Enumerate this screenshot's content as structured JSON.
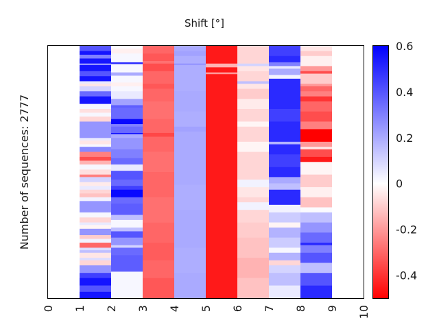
{
  "chart_data": {
    "type": "heatmap",
    "title": "Shift [°]",
    "xlabel": "",
    "ylabel": "Number of sequences: 2777",
    "num_sequences": 2777,
    "x_ticks": [
      "0",
      "1",
      "2",
      "3",
      "4",
      "5",
      "6",
      "7",
      "8",
      "9",
      "10"
    ],
    "xlim": [
      0,
      10
    ],
    "colorbar": {
      "colormap": "bwr",
      "range": [
        -0.5,
        0.6
      ],
      "ticks": [
        0.6,
        0.4,
        0.2,
        0,
        -0.2,
        -0.4
      ],
      "tick_labels": [
        "0.6",
        "0.4",
        "0.2",
        "0",
        "-0.2",
        "-0.4"
      ],
      "colors": {
        "min": "#ff0000",
        "mid": "#ffffff",
        "max": "#0000ff"
      }
    },
    "columns": [
      {
        "x": 1,
        "segments": [
          [
            0.0,
            0.4
          ],
          [
            0.02,
            0.55
          ],
          [
            0.035,
            0.3
          ],
          [
            0.05,
            0.55
          ],
          [
            0.07,
            0.15
          ],
          [
            0.075,
            0.55
          ],
          [
            0.1,
            0.4
          ],
          [
            0.12,
            0.55
          ],
          [
            0.14,
            0.05
          ],
          [
            0.15,
            -0.05
          ],
          [
            0.16,
            0.1
          ],
          [
            0.18,
            0.35
          ],
          [
            0.2,
            0.55
          ],
          [
            0.23,
            0.02
          ],
          [
            0.25,
            -0.06
          ],
          [
            0.265,
            0.02
          ],
          [
            0.28,
            -0.08
          ],
          [
            0.3,
            0.25
          ],
          [
            0.32,
            0.25
          ],
          [
            0.365,
            0.05
          ],
          [
            0.375,
            -0.05
          ],
          [
            0.39,
            0.02
          ],
          [
            0.4,
            0.28
          ],
          [
            0.42,
            -0.25
          ],
          [
            0.44,
            -0.35
          ],
          [
            0.455,
            -0.15
          ],
          [
            0.47,
            0.02
          ],
          [
            0.49,
            -0.06
          ],
          [
            0.51,
            -0.25
          ],
          [
            0.52,
            0.1
          ],
          [
            0.54,
            -0.04
          ],
          [
            0.555,
            0.05
          ],
          [
            0.57,
            -0.08
          ],
          [
            0.585,
            -0.12
          ],
          [
            0.6,
            0.03
          ],
          [
            0.615,
            0.25
          ],
          [
            0.66,
            0.02
          ],
          [
            0.68,
            -0.08
          ],
          [
            0.7,
            0.05
          ],
          [
            0.71,
            -0.02
          ],
          [
            0.725,
            0.25
          ],
          [
            0.75,
            -0.1
          ],
          [
            0.765,
            0.03
          ],
          [
            0.78,
            -0.3
          ],
          [
            0.8,
            0.08
          ],
          [
            0.81,
            0.15
          ],
          [
            0.82,
            -0.05
          ],
          [
            0.84,
            0.08
          ],
          [
            0.85,
            -0.08
          ],
          [
            0.87,
            0.25
          ],
          [
            0.9,
            0.45
          ],
          [
            0.92,
            0.55
          ],
          [
            0.95,
            0.4
          ],
          [
            0.975,
            0.55
          ]
        ]
      },
      {
        "x": 2,
        "segments": [
          [
            0.0,
            0.01
          ],
          [
            0.01,
            -0.03
          ],
          [
            0.03,
            0.02
          ],
          [
            0.065,
            0.5
          ],
          [
            0.072,
            0.02
          ],
          [
            0.105,
            0.2
          ],
          [
            0.118,
            0.02
          ],
          [
            0.145,
            -0.03
          ],
          [
            0.16,
            0.02
          ],
          [
            0.18,
            0.05
          ],
          [
            0.21,
            0.22
          ],
          [
            0.235,
            0.38
          ],
          [
            0.245,
            0.35
          ],
          [
            0.29,
            0.58
          ],
          [
            0.31,
            0.3
          ],
          [
            0.32,
            0.35
          ],
          [
            0.345,
            0.55
          ],
          [
            0.35,
            0.2
          ],
          [
            0.365,
            0.25
          ],
          [
            0.41,
            0.3
          ],
          [
            0.445,
            0.35
          ],
          [
            0.47,
            0.05
          ],
          [
            0.495,
            0.4
          ],
          [
            0.53,
            0.35
          ],
          [
            0.555,
            0.45
          ],
          [
            0.57,
            0.58
          ],
          [
            0.6,
            0.35
          ],
          [
            0.625,
            0.38
          ],
          [
            0.67,
            0.15
          ],
          [
            0.69,
            0.02
          ],
          [
            0.72,
            0.15
          ],
          [
            0.735,
            0.4
          ],
          [
            0.76,
            0.25
          ],
          [
            0.79,
            0.1
          ],
          [
            0.8,
            0.35
          ],
          [
            0.83,
            0.38
          ],
          [
            0.895,
            0.02
          ]
        ]
      },
      {
        "x": 3,
        "segments": [
          [
            0.0,
            -0.3
          ],
          [
            0.03,
            -0.33
          ],
          [
            0.06,
            -0.28
          ],
          [
            0.07,
            -0.35
          ],
          [
            0.1,
            -0.3
          ],
          [
            0.15,
            -0.33
          ],
          [
            0.17,
            -0.3
          ],
          [
            0.22,
            -0.28
          ],
          [
            0.29,
            -0.3
          ],
          [
            0.345,
            -0.36
          ],
          [
            0.36,
            -0.3
          ],
          [
            0.42,
            -0.28
          ],
          [
            0.5,
            -0.3
          ],
          [
            0.6,
            -0.28
          ],
          [
            0.7,
            -0.3
          ],
          [
            0.78,
            -0.32
          ],
          [
            0.85,
            -0.3
          ],
          [
            0.92,
            -0.33
          ]
        ]
      },
      {
        "x": 4,
        "segments": [
          [
            0.0,
            0.2
          ],
          [
            0.02,
            0.22
          ],
          [
            0.04,
            0.19
          ],
          [
            0.07,
            0.27
          ],
          [
            0.075,
            0.19
          ],
          [
            0.18,
            0.2
          ],
          [
            0.26,
            0.19
          ],
          [
            0.32,
            0.22
          ],
          [
            0.34,
            0.2
          ],
          [
            0.55,
            0.19
          ],
          [
            0.65,
            0.2
          ],
          [
            0.8,
            0.19
          ],
          [
            0.9,
            0.2
          ]
        ]
      },
      {
        "x": 5,
        "segments": [
          [
            0.0,
            -0.45
          ],
          [
            0.07,
            -0.15
          ],
          [
            0.085,
            -0.45
          ],
          [
            0.105,
            -0.2
          ],
          [
            0.112,
            -0.45
          ]
        ]
      },
      {
        "x": 6,
        "segments": [
          [
            0.0,
            -0.08
          ],
          [
            0.07,
            0.1
          ],
          [
            0.08,
            -0.05
          ],
          [
            0.1,
            -0.08
          ],
          [
            0.14,
            0.15
          ],
          [
            0.15,
            -0.05
          ],
          [
            0.17,
            -0.1
          ],
          [
            0.21,
            -0.04
          ],
          [
            0.25,
            -0.08
          ],
          [
            0.3,
            -0.02
          ],
          [
            0.32,
            -0.08
          ],
          [
            0.38,
            -0.02
          ],
          [
            0.42,
            -0.08
          ],
          [
            0.53,
            0.03
          ],
          [
            0.56,
            -0.05
          ],
          [
            0.6,
            -0.08
          ],
          [
            0.62,
            0.03
          ],
          [
            0.65,
            -0.08
          ],
          [
            0.7,
            -0.1
          ],
          [
            0.76,
            -0.12
          ],
          [
            0.84,
            -0.15
          ],
          [
            0.92,
            -0.12
          ]
        ]
      },
      {
        "x": 7,
        "segments": [
          [
            0.0,
            0.45
          ],
          [
            0.04,
            0.5
          ],
          [
            0.065,
            0.3
          ],
          [
            0.08,
            0.05
          ],
          [
            0.09,
            0.2
          ],
          [
            0.115,
            0.03
          ],
          [
            0.13,
            0.5
          ],
          [
            0.25,
            0.45
          ],
          [
            0.3,
            0.5
          ],
          [
            0.375,
            0.5
          ],
          [
            0.38,
            0.18
          ],
          [
            0.39,
            0.5
          ],
          [
            0.43,
            0.45
          ],
          [
            0.48,
            0.5
          ],
          [
            0.52,
            0.2
          ],
          [
            0.545,
            0.15
          ],
          [
            0.57,
            0.5
          ],
          [
            0.63,
            0.03
          ],
          [
            0.66,
            0.12
          ],
          [
            0.7,
            -0.02
          ],
          [
            0.72,
            0.18
          ],
          [
            0.76,
            0.12
          ],
          [
            0.8,
            0.02
          ],
          [
            0.82,
            0.18
          ],
          [
            0.85,
            -0.08
          ],
          [
            0.87,
            0.1
          ],
          [
            0.9,
            0.15
          ],
          [
            0.95,
            0.05
          ]
        ]
      },
      {
        "x": 8,
        "segments": [
          [
            0.0,
            -0.05
          ],
          [
            0.02,
            -0.1
          ],
          [
            0.04,
            -0.03
          ],
          [
            0.08,
            -0.2
          ],
          [
            0.1,
            -0.35
          ],
          [
            0.11,
            -0.1
          ],
          [
            0.15,
            -0.2
          ],
          [
            0.16,
            -0.3
          ],
          [
            0.18,
            -0.25
          ],
          [
            0.2,
            -0.4
          ],
          [
            0.22,
            -0.3
          ],
          [
            0.26,
            -0.35
          ],
          [
            0.3,
            -0.25
          ],
          [
            0.33,
            -0.5
          ],
          [
            0.38,
            -0.2
          ],
          [
            0.4,
            -0.05
          ],
          [
            0.41,
            -0.35
          ],
          [
            0.44,
            -0.45
          ],
          [
            0.46,
            -0.02
          ],
          [
            0.51,
            -0.1
          ],
          [
            0.56,
            -0.03
          ],
          [
            0.6,
            -0.12
          ],
          [
            0.64,
            0.01
          ],
          [
            0.66,
            0.15
          ],
          [
            0.7,
            0.25
          ],
          [
            0.74,
            0.35
          ],
          [
            0.78,
            0.5
          ],
          [
            0.79,
            0.3
          ],
          [
            0.82,
            0.4
          ],
          [
            0.86,
            0.15
          ],
          [
            0.9,
            0.4
          ],
          [
            0.95,
            0.5
          ]
        ]
      }
    ]
  }
}
